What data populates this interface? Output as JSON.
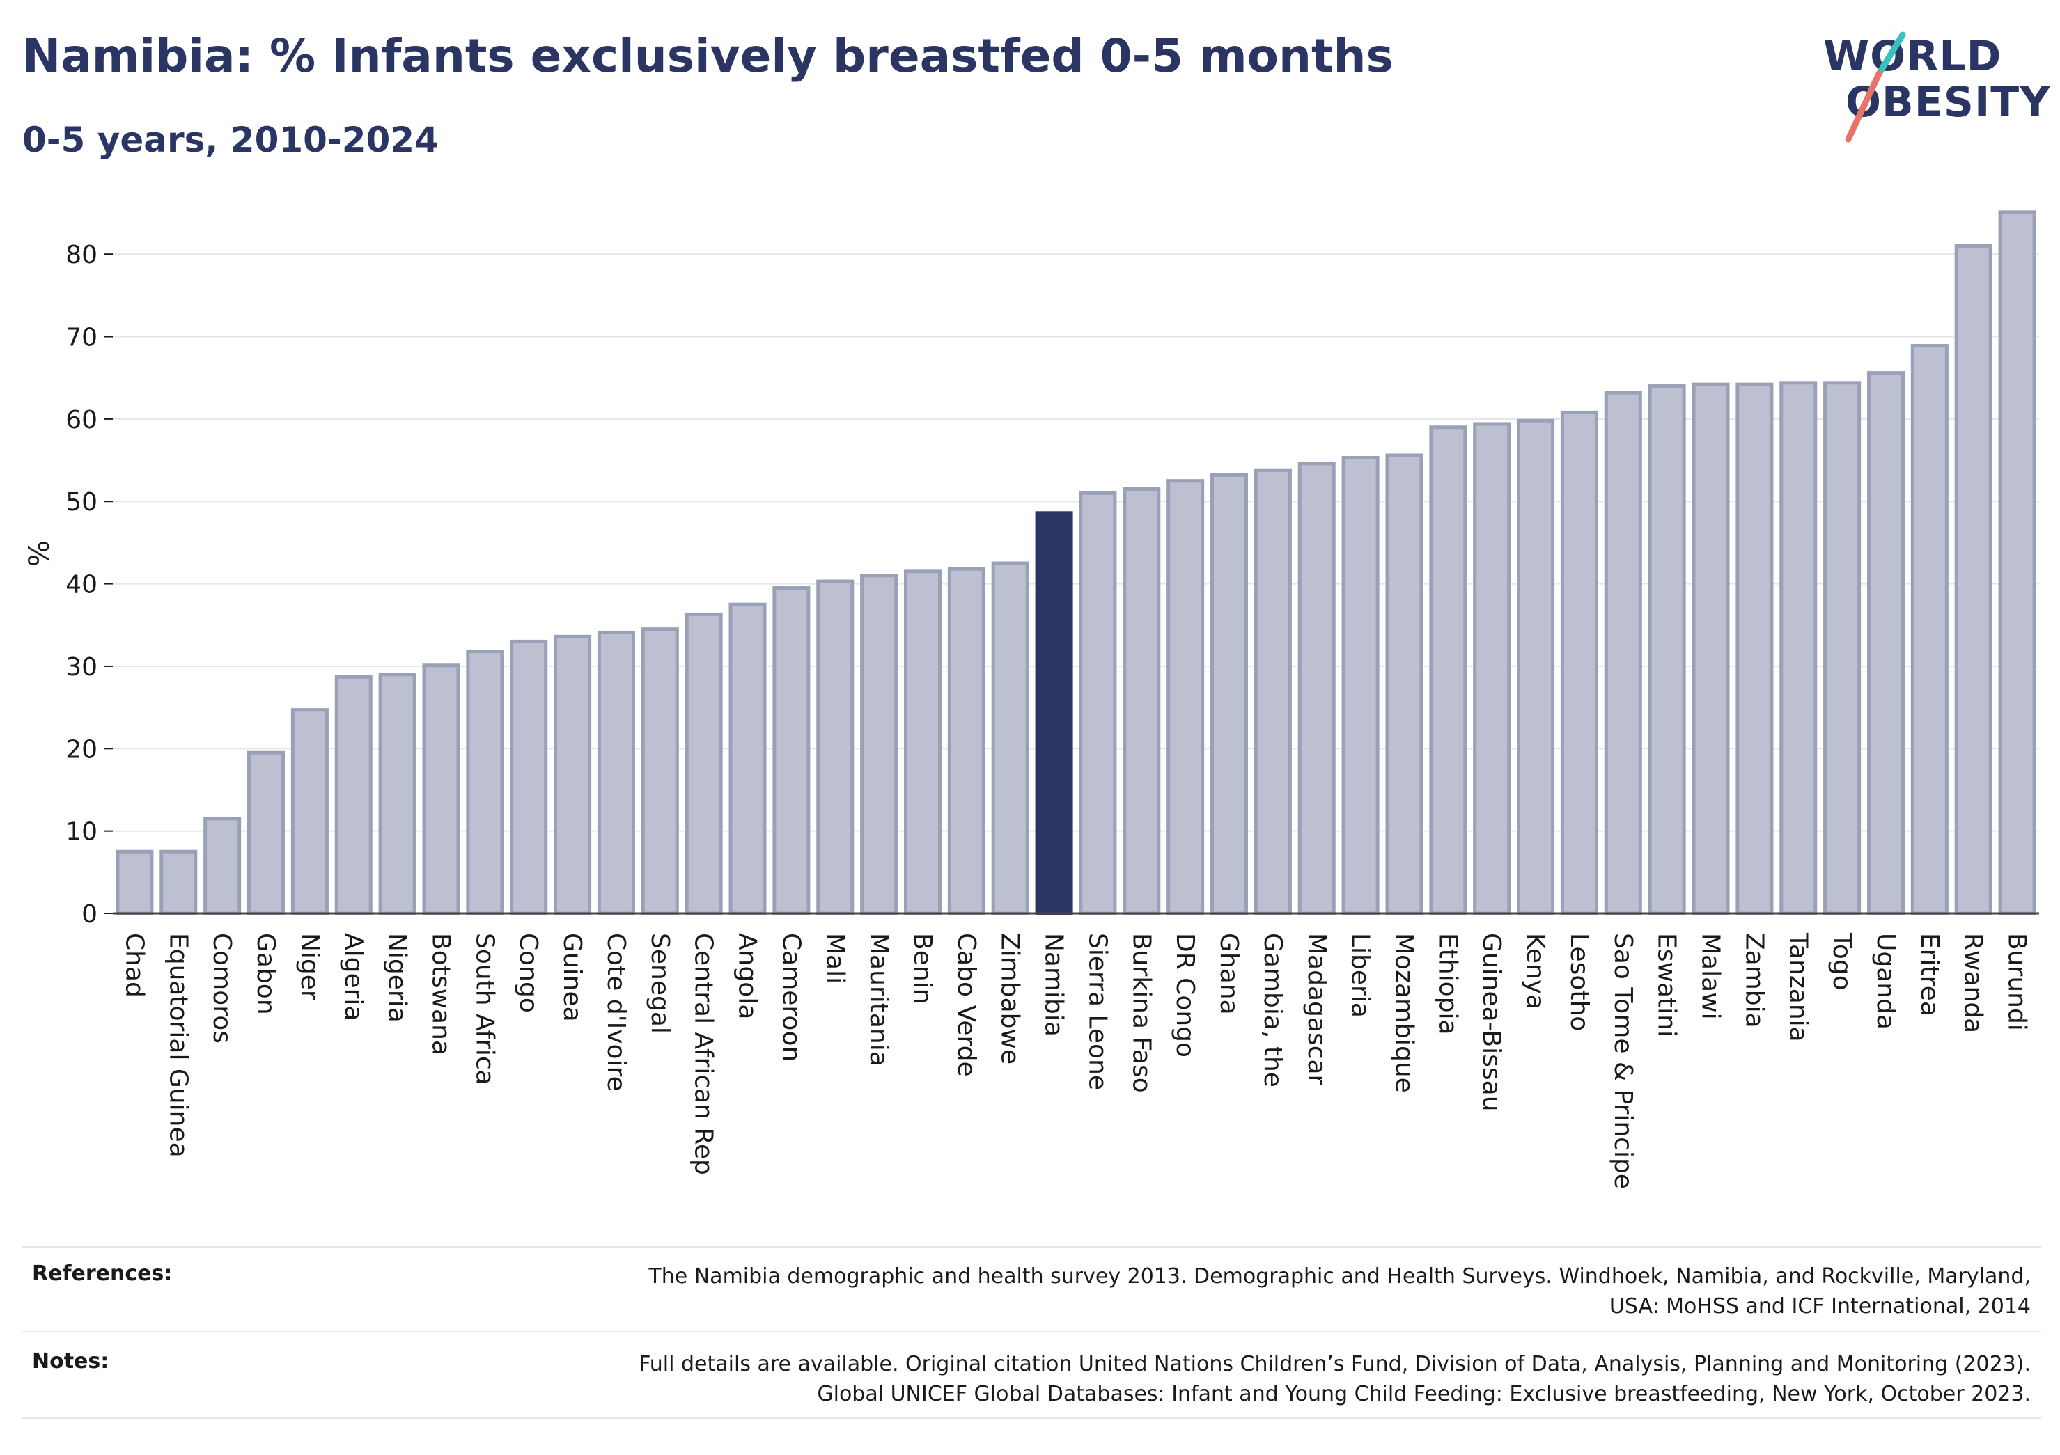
{
  "header": {
    "title": "Namibia: % Infants exclusively breastfed 0-5 months",
    "subtitle": "0-5 years, 2010-2024"
  },
  "logo": {
    "line1": "WORLD",
    "line2": "OBESITY",
    "icon": "world-obesity-logo"
  },
  "colors": {
    "bar": "#bcc0d0",
    "bar_border": "#9aa0b8",
    "highlight": "#2b3563",
    "text": "#2b3563",
    "grid": "#e6e6e6",
    "logo_teal": "#3bbfbf",
    "logo_coral": "#e8736a"
  },
  "chart_data": {
    "type": "bar",
    "ylabel": "%",
    "xlabel": "",
    "ylim": [
      0,
      85
    ],
    "yticks": [
      0,
      10,
      20,
      30,
      40,
      50,
      60,
      70,
      80
    ],
    "grid": true,
    "highlight": "Namibia",
    "categories": [
      "Chad",
      "Equatorial Guinea",
      "Comoros",
      "Gabon",
      "Niger",
      "Algeria",
      "Nigeria",
      "Botswana",
      "South Africa",
      "Congo",
      "Guinea",
      "Cote d'Ivoire",
      "Senegal",
      "Central African Rep",
      "Angola",
      "Cameroon",
      "Mali",
      "Mauritania",
      "Benin",
      "Cabo Verde",
      "Zimbabwe",
      "Namibia",
      "Sierra Leone",
      "Burkina Faso",
      "DR Congo",
      "Ghana",
      "Gambia, the",
      "Madagascar",
      "Liberia",
      "Mozambique",
      "Ethiopia",
      "Guinea-Bissau",
      "Kenya",
      "Lesotho",
      "Sao Tome & Principe",
      "Eswatini",
      "Malawi",
      "Zambia",
      "Tanzania",
      "Togo",
      "Uganda",
      "Eritrea",
      "Rwanda",
      "Burundi"
    ],
    "values": [
      7.5,
      7.5,
      11.5,
      19.5,
      24.7,
      28.7,
      29.0,
      30.1,
      31.8,
      33.0,
      33.6,
      34.1,
      34.5,
      36.3,
      37.5,
      39.5,
      40.3,
      41.0,
      41.5,
      41.8,
      42.5,
      48.6,
      51.0,
      51.5,
      52.5,
      53.2,
      53.8,
      54.6,
      55.3,
      55.6,
      59.0,
      59.4,
      59.8,
      60.8,
      63.2,
      64.0,
      64.2,
      64.2,
      64.4,
      64.4,
      65.6,
      68.9,
      81.0,
      85.1
    ]
  },
  "footer": {
    "references_label": "References:",
    "references_line1": "The Namibia demographic and health survey 2013. Demographic and Health Surveys. Windhoek, Namibia, and Rockville, Maryland,",
    "references_line2": "USA: MoHSS and ICF International, 2014",
    "notes_label": "Notes:",
    "notes_line1": "Full details are available. Original citation United Nations Children’s Fund, Division of Data, Analysis, Planning and Monitoring (2023).",
    "notes_line2": "Global UNICEF Global Databases: Infant and Young Child Feeding: Exclusive breastfeeding, New York, October 2023."
  }
}
